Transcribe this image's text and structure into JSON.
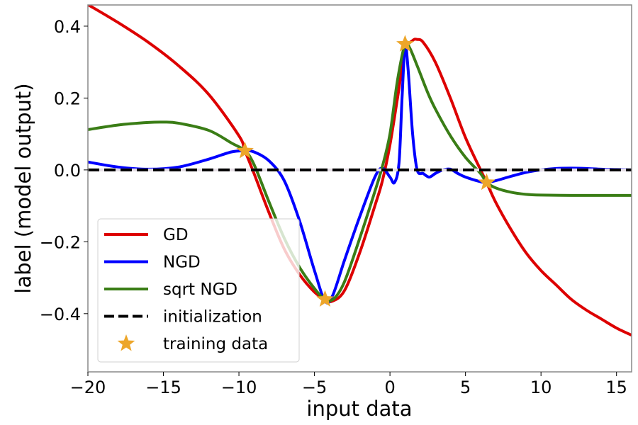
{
  "chart_data": {
    "type": "line",
    "title": "",
    "xlabel": "input data",
    "ylabel": "label (model output)",
    "xlim": [
      -20,
      16
    ],
    "ylim": [
      -0.562,
      0.459
    ],
    "grid": false,
    "legend_placement": "lower-left",
    "xticks": [
      -20,
      -15,
      -10,
      -5,
      0,
      5,
      10,
      15
    ],
    "xtick_labels": [
      "−20",
      "−15",
      "−10",
      "−5",
      "0",
      "5",
      "10",
      "15"
    ],
    "yticks": [
      -0.4,
      -0.2,
      0.0,
      0.2,
      0.4
    ],
    "ytick_labels": [
      "−0.4",
      "−0.2",
      "0.0",
      "0.2",
      "0.4"
    ],
    "series": [
      {
        "name": "GD",
        "color": "#dd0000",
        "style": "solid",
        "x": [
          -20,
          -18,
          -16,
          -14,
          -12,
          -10,
          -9.6,
          -9,
          -8,
          -7,
          -6,
          -5,
          -4.3,
          -3.8,
          -3,
          -2,
          -1,
          -0.5,
          0,
          0.5,
          1,
          1.5,
          1.8,
          2.2,
          3,
          4,
          5,
          6,
          6.4,
          7,
          8,
          9,
          10,
          11,
          12,
          13,
          14,
          15,
          16
        ],
        "y": [
          0.46,
          0.41,
          0.355,
          0.29,
          0.21,
          0.095,
          0.053,
          -0.01,
          -0.12,
          -0.22,
          -0.29,
          -0.34,
          -0.36,
          -0.365,
          -0.335,
          -0.23,
          -0.1,
          -0.03,
          0.07,
          0.2,
          0.33,
          0.36,
          0.363,
          0.355,
          0.3,
          0.2,
          0.09,
          0.0,
          -0.035,
          -0.09,
          -0.165,
          -0.23,
          -0.28,
          -0.32,
          -0.36,
          -0.39,
          -0.415,
          -0.44,
          -0.46
        ]
      },
      {
        "name": "NGD",
        "color": "#0000ff",
        "style": "solid",
        "x": [
          -20,
          -18,
          -16,
          -14,
          -12,
          -10.5,
          -9.6,
          -9,
          -8,
          -7,
          -6,
          -5,
          -4.3,
          -3.8,
          -3,
          -2,
          -1,
          -0.5,
          0,
          0.3,
          0.6,
          0.8,
          1.0,
          1.2,
          1.5,
          1.8,
          2.2,
          2.6,
          3,
          3.5,
          4,
          4.5,
          5,
          6,
          6.4,
          7,
          8,
          9,
          10,
          11,
          12,
          13,
          14,
          15,
          16
        ],
        "y": [
          0.022,
          0.008,
          0.002,
          0.008,
          0.03,
          0.05,
          0.053,
          0.05,
          0.025,
          -0.03,
          -0.14,
          -0.28,
          -0.365,
          -0.35,
          -0.25,
          -0.13,
          -0.02,
          0.005,
          -0.02,
          -0.035,
          0.02,
          0.2,
          0.345,
          0.28,
          0.1,
          0.0,
          -0.01,
          -0.02,
          -0.01,
          0.0,
          0.002,
          -0.01,
          -0.02,
          -0.033,
          -0.035,
          -0.03,
          -0.018,
          -0.007,
          0.0,
          0.004,
          0.005,
          0.004,
          0.002,
          0.001,
          0.0
        ]
      },
      {
        "name": "sqrt NGD",
        "color": "#3a7d16",
        "style": "solid",
        "x": [
          -20,
          -18,
          -16,
          -15,
          -14,
          -12,
          -10.5,
          -9.6,
          -9,
          -8,
          -7,
          -6,
          -5,
          -4.3,
          -3.7,
          -3,
          -2,
          -1,
          -0.5,
          0,
          0.5,
          1,
          1.3,
          1.8,
          2.5,
          3,
          4,
          5,
          6,
          6.4,
          7,
          8,
          9,
          10,
          12,
          14,
          16
        ],
        "y": [
          0.112,
          0.125,
          0.132,
          0.133,
          0.13,
          0.11,
          0.075,
          0.053,
          0.015,
          -0.09,
          -0.19,
          -0.27,
          -0.33,
          -0.36,
          -0.358,
          -0.31,
          -0.19,
          -0.06,
          0.01,
          0.1,
          0.25,
          0.35,
          0.34,
          0.29,
          0.215,
          0.17,
          0.095,
          0.035,
          -0.01,
          -0.035,
          -0.05,
          -0.062,
          -0.068,
          -0.07,
          -0.071,
          -0.071,
          -0.071
        ]
      },
      {
        "name": "initialization",
        "color": "#000000",
        "style": "dashed",
        "x": [
          -20,
          16
        ],
        "y": [
          0.0,
          0.0
        ]
      }
    ],
    "training_data": {
      "name": "training data",
      "color": "#eda62a",
      "marker": "star",
      "x": [
        -9.6,
        -4.3,
        1.0,
        6.4
      ],
      "y": [
        0.053,
        -0.36,
        0.35,
        -0.035
      ]
    },
    "legend": [
      "GD",
      "NGD",
      "sqrt NGD",
      "initialization",
      "training data"
    ]
  }
}
